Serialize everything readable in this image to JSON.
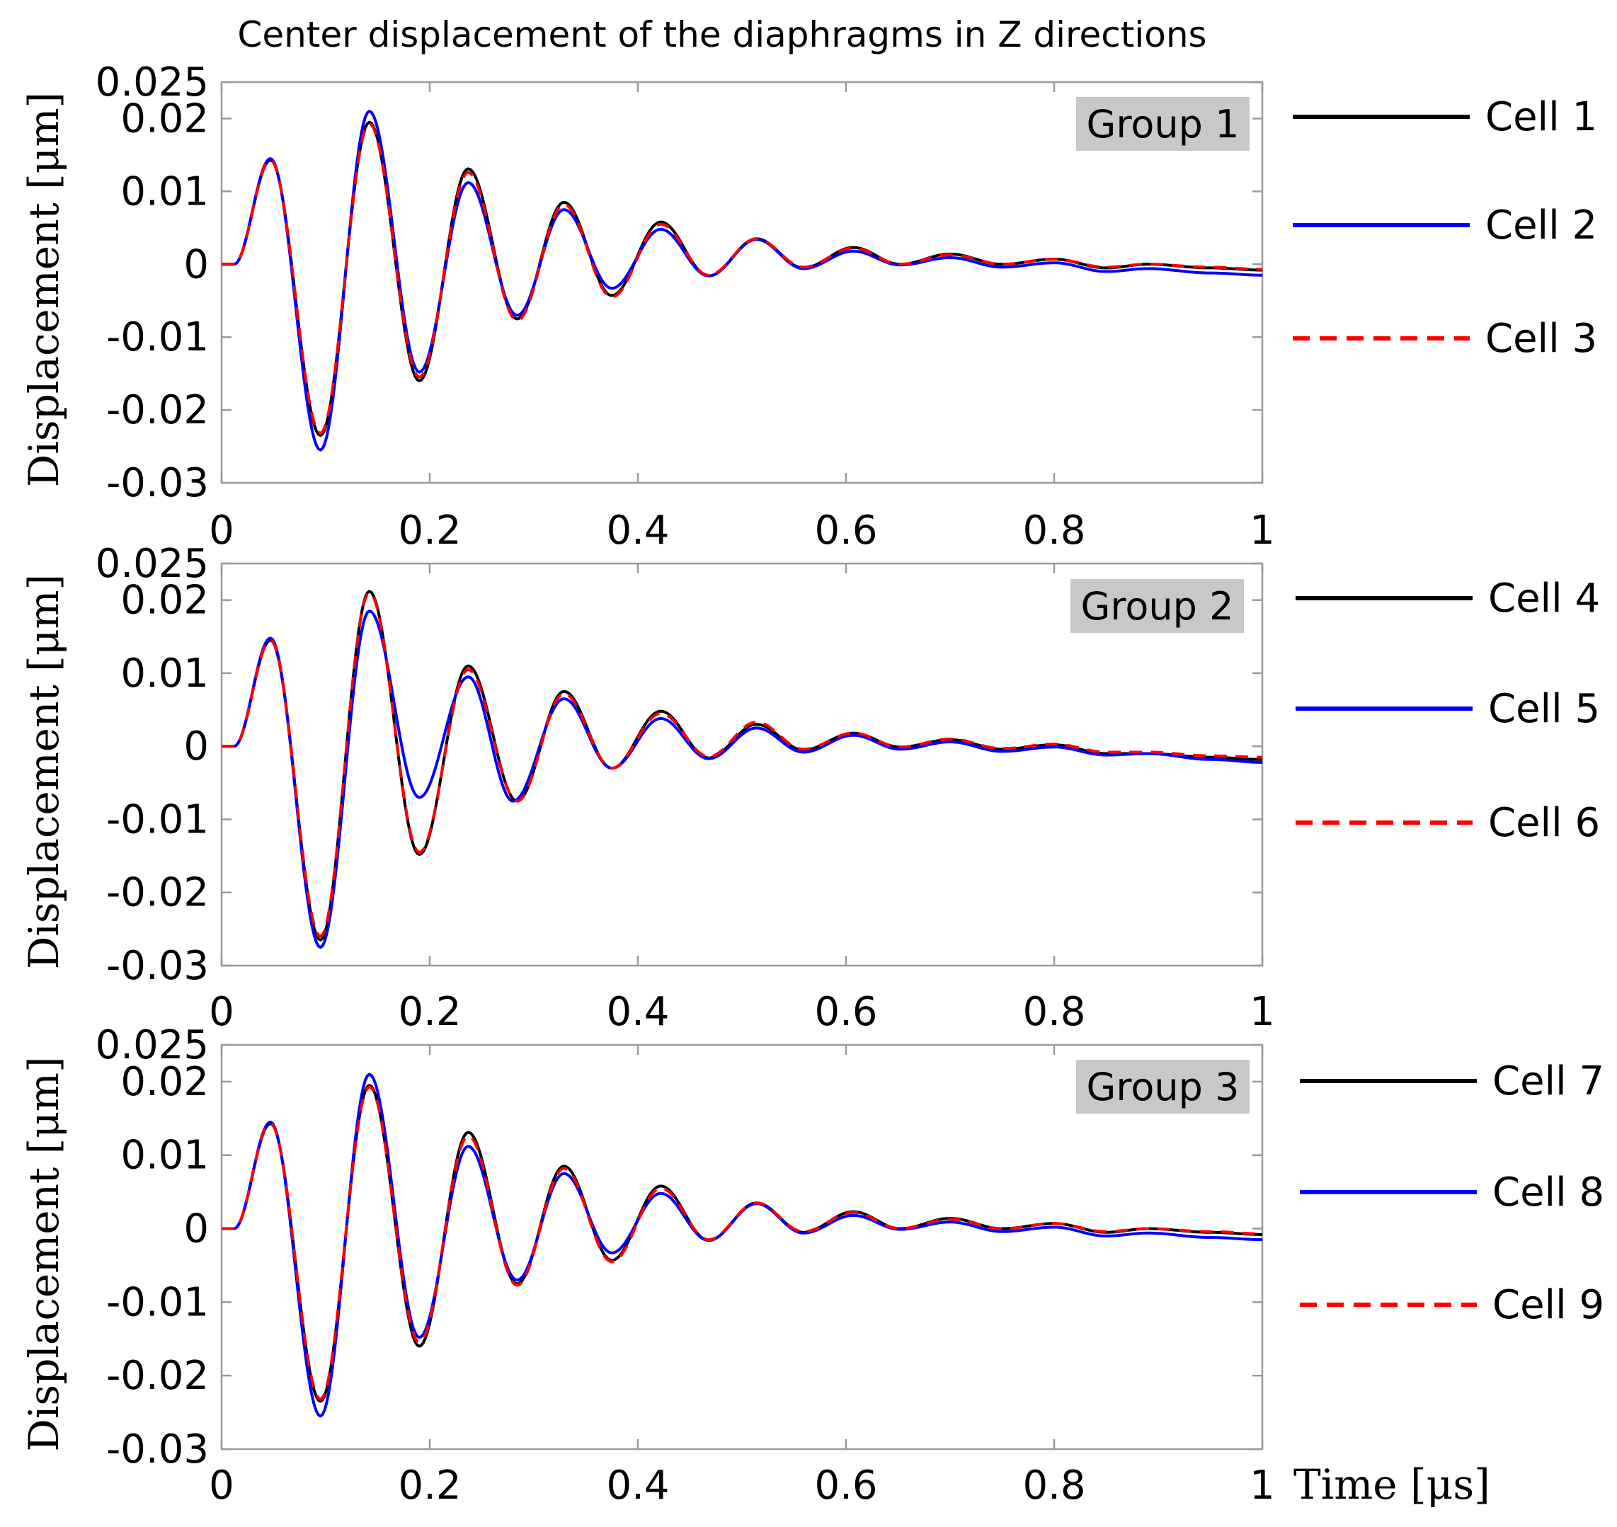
{
  "title": "Center displacement of the diaphragms in Z directions",
  "x_label": "Time [μs]",
  "colors": {
    "black": "#000000",
    "blue": "#0000ff",
    "red": "#ff0000",
    "group_box": "#c8c8c8",
    "axes": "#999999"
  },
  "chart_data": [
    {
      "type": "line",
      "group_label": "Group 1",
      "ylabel": "Displacement [μm]",
      "xlim": [
        0,
        1
      ],
      "ylim": [
        -0.03,
        0.025
      ],
      "x_ticks": [
        0,
        0.2,
        0.4,
        0.6,
        0.8,
        1
      ],
      "x_tick_labels": [
        "0",
        "0.2",
        "0.4",
        "0.6",
        "0.8",
        "1"
      ],
      "y_ticks": [
        0.025,
        0.02,
        0.01,
        0,
        -0.01,
        -0.02,
        -0.03
      ],
      "y_tick_labels": [
        "0.025",
        "0.02",
        "0.01",
        "0",
        "-0.01",
        "-0.02",
        "-0.03"
      ],
      "series": [
        {
          "name": "Cell 1",
          "color": "#000000",
          "dashed": false,
          "extrema": [
            [
              0,
              0
            ],
            [
              0.012,
              0
            ],
            [
              0.047,
              0.0143
            ],
            [
              0.095,
              -0.0235
            ],
            [
              0.142,
              0.0195
            ],
            [
              0.19,
              -0.016
            ],
            [
              0.237,
              0.0131
            ],
            [
              0.284,
              -0.0075
            ],
            [
              0.329,
              0.0085
            ],
            [
              0.375,
              -0.0043
            ],
            [
              0.422,
              0.0058
            ],
            [
              0.468,
              -0.0016
            ],
            [
              0.514,
              0.0035
            ],
            [
              0.559,
              -0.0005
            ],
            [
              0.607,
              0.0023
            ],
            [
              0.652,
              0
            ],
            [
              0.7,
              0.0014
            ],
            [
              0.75,
              0
            ],
            [
              0.8,
              0.0007
            ],
            [
              0.85,
              -0.0005
            ],
            [
              0.89,
              0
            ],
            [
              0.95,
              -0.0005
            ],
            [
              1,
              -0.0008
            ]
          ]
        },
        {
          "name": "Cell 2",
          "color": "#0000ff",
          "dashed": false,
          "extrema": [
            [
              0,
              0
            ],
            [
              0.012,
              0
            ],
            [
              0.047,
              0.0145
            ],
            [
              0.095,
              -0.0255
            ],
            [
              0.142,
              0.021
            ],
            [
              0.19,
              -0.0148
            ],
            [
              0.237,
              0.0112
            ],
            [
              0.284,
              -0.007
            ],
            [
              0.329,
              0.0075
            ],
            [
              0.375,
              -0.0033
            ],
            [
              0.422,
              0.0048
            ],
            [
              0.468,
              -0.0016
            ],
            [
              0.514,
              0.0034
            ],
            [
              0.559,
              -0.0006
            ],
            [
              0.607,
              0.0018
            ],
            [
              0.652,
              -0.0001
            ],
            [
              0.7,
              0.0009
            ],
            [
              0.75,
              -0.0004
            ],
            [
              0.8,
              0.0002
            ],
            [
              0.85,
              -0.001
            ],
            [
              0.89,
              -0.0006
            ],
            [
              0.95,
              -0.0012
            ],
            [
              1,
              -0.0015
            ]
          ]
        },
        {
          "name": "Cell 3",
          "color": "#ff0000",
          "dashed": true,
          "extrema": [
            [
              0,
              0
            ],
            [
              0.012,
              0
            ],
            [
              0.047,
              0.0143
            ],
            [
              0.095,
              -0.0232
            ],
            [
              0.142,
              0.0193
            ],
            [
              0.19,
              -0.0155
            ],
            [
              0.237,
              0.0126
            ],
            [
              0.284,
              -0.0077
            ],
            [
              0.329,
              0.0082
            ],
            [
              0.375,
              -0.0045
            ],
            [
              0.422,
              0.0055
            ],
            [
              0.468,
              -0.0015
            ],
            [
              0.514,
              0.0035
            ],
            [
              0.559,
              -0.0004
            ],
            [
              0.607,
              0.0022
            ],
            [
              0.652,
              0
            ],
            [
              0.7,
              0.0013
            ],
            [
              0.75,
              0
            ],
            [
              0.8,
              0.0007
            ],
            [
              0.85,
              -0.0004
            ],
            [
              0.89,
              0
            ],
            [
              0.95,
              -0.0004
            ],
            [
              1,
              -0.0007
            ]
          ]
        }
      ]
    },
    {
      "type": "line",
      "group_label": "Group 2",
      "ylabel": "Displacement [μm]",
      "xlim": [
        0,
        1
      ],
      "ylim": [
        -0.03,
        0.025
      ],
      "x_ticks": [
        0,
        0.2,
        0.4,
        0.6,
        0.8,
        1
      ],
      "x_tick_labels": [
        "0",
        "0.2",
        "0.4",
        "0.6",
        "0.8",
        "1"
      ],
      "y_ticks": [
        0.025,
        0.02,
        0.01,
        0,
        -0.01,
        -0.02,
        -0.03
      ],
      "y_tick_labels": [
        "0.025",
        "0.02",
        "0.01",
        "0",
        "-0.01",
        "-0.02",
        "-0.03"
      ],
      "series": [
        {
          "name": "Cell 4",
          "color": "#000000",
          "dashed": false,
          "extrema": [
            [
              0,
              0
            ],
            [
              0.012,
              0
            ],
            [
              0.047,
              0.0145
            ],
            [
              0.095,
              -0.0265
            ],
            [
              0.142,
              0.0212
            ],
            [
              0.19,
              -0.0148
            ],
            [
              0.237,
              0.011
            ],
            [
              0.284,
              -0.0075
            ],
            [
              0.329,
              0.0075
            ],
            [
              0.375,
              -0.003
            ],
            [
              0.422,
              0.0048
            ],
            [
              0.468,
              -0.0016
            ],
            [
              0.514,
              0.003
            ],
            [
              0.559,
              -0.0005
            ],
            [
              0.607,
              0.0018
            ],
            [
              0.652,
              -0.0001
            ],
            [
              0.7,
              0.0009
            ],
            [
              0.75,
              -0.0004
            ],
            [
              0.8,
              0.0002
            ],
            [
              0.85,
              -0.001
            ],
            [
              0.89,
              -0.001
            ],
            [
              0.95,
              -0.0015
            ],
            [
              1,
              -0.0018
            ]
          ]
        },
        {
          "name": "Cell 5",
          "color": "#0000ff",
          "dashed": false,
          "extrema": [
            [
              0,
              0
            ],
            [
              0.012,
              0
            ],
            [
              0.047,
              0.0148
            ],
            [
              0.095,
              -0.0275
            ],
            [
              0.142,
              0.0185
            ],
            [
              0.19,
              -0.007
            ],
            [
              0.237,
              0.0095
            ],
            [
              0.28,
              -0.0075
            ],
            [
              0.329,
              0.0065
            ],
            [
              0.375,
              -0.003
            ],
            [
              0.422,
              0.0038
            ],
            [
              0.468,
              -0.0017
            ],
            [
              0.514,
              0.0025
            ],
            [
              0.559,
              -0.0008
            ],
            [
              0.607,
              0.0015
            ],
            [
              0.652,
              -0.0004
            ],
            [
              0.7,
              0.0006
            ],
            [
              0.75,
              -0.0007
            ],
            [
              0.8,
              -0.0001
            ],
            [
              0.85,
              -0.0012
            ],
            [
              0.89,
              -0.001
            ],
            [
              0.95,
              -0.0018
            ],
            [
              1,
              -0.0022
            ]
          ]
        },
        {
          "name": "Cell 6",
          "color": "#ff0000",
          "dashed": true,
          "extrema": [
            [
              0,
              0
            ],
            [
              0.012,
              0
            ],
            [
              0.047,
              0.0145
            ],
            [
              0.095,
              -0.026
            ],
            [
              0.142,
              0.021
            ],
            [
              0.19,
              -0.0145
            ],
            [
              0.237,
              0.0105
            ],
            [
              0.284,
              -0.0075
            ],
            [
              0.329,
              0.0072
            ],
            [
              0.375,
              -0.003
            ],
            [
              0.422,
              0.0045
            ],
            [
              0.468,
              -0.0014
            ],
            [
              0.514,
              0.0033
            ],
            [
              0.559,
              -0.0004
            ],
            [
              0.607,
              0.0018
            ],
            [
              0.652,
              -0.0001
            ],
            [
              0.7,
              0.001
            ],
            [
              0.75,
              -0.0003
            ],
            [
              0.8,
              0.0003
            ],
            [
              0.85,
              -0.0008
            ],
            [
              0.89,
              -0.0008
            ],
            [
              0.95,
              -0.0013
            ],
            [
              1,
              -0.0015
            ]
          ]
        }
      ]
    },
    {
      "type": "line",
      "group_label": "Group 3",
      "ylabel": "Displacement [μm]",
      "xlim": [
        0,
        1
      ],
      "ylim": [
        -0.03,
        0.025
      ],
      "x_ticks": [
        0,
        0.2,
        0.4,
        0.6,
        0.8,
        1
      ],
      "x_tick_labels": [
        "0",
        "0.2",
        "0.4",
        "0.6",
        "0.8",
        "1"
      ],
      "y_ticks": [
        0.025,
        0.02,
        0.01,
        0,
        -0.01,
        -0.02,
        -0.03
      ],
      "y_tick_labels": [
        "0.025",
        "0.02",
        "0.01",
        "0",
        "-0.01",
        "-0.02",
        "-0.03"
      ],
      "series": [
        {
          "name": "Cell 7",
          "color": "#000000",
          "dashed": false,
          "extrema": [
            [
              0,
              0
            ],
            [
              0.012,
              0
            ],
            [
              0.047,
              0.0143
            ],
            [
              0.095,
              -0.0235
            ],
            [
              0.142,
              0.0195
            ],
            [
              0.19,
              -0.016
            ],
            [
              0.237,
              0.0131
            ],
            [
              0.284,
              -0.0075
            ],
            [
              0.329,
              0.0085
            ],
            [
              0.375,
              -0.0043
            ],
            [
              0.422,
              0.0058
            ],
            [
              0.468,
              -0.0016
            ],
            [
              0.514,
              0.0035
            ],
            [
              0.559,
              -0.0005
            ],
            [
              0.607,
              0.0023
            ],
            [
              0.652,
              0
            ],
            [
              0.7,
              0.0014
            ],
            [
              0.75,
              0
            ],
            [
              0.8,
              0.0007
            ],
            [
              0.85,
              -0.0005
            ],
            [
              0.89,
              0
            ],
            [
              0.95,
              -0.0005
            ],
            [
              1,
              -0.0008
            ]
          ]
        },
        {
          "name": "Cell 8",
          "color": "#0000ff",
          "dashed": false,
          "extrema": [
            [
              0,
              0
            ],
            [
              0.012,
              0
            ],
            [
              0.047,
              0.0145
            ],
            [
              0.095,
              -0.0255
            ],
            [
              0.142,
              0.021
            ],
            [
              0.19,
              -0.0148
            ],
            [
              0.237,
              0.0112
            ],
            [
              0.284,
              -0.007
            ],
            [
              0.329,
              0.0075
            ],
            [
              0.375,
              -0.0033
            ],
            [
              0.422,
              0.0048
            ],
            [
              0.468,
              -0.0016
            ],
            [
              0.514,
              0.0034
            ],
            [
              0.559,
              -0.0006
            ],
            [
              0.607,
              0.0018
            ],
            [
              0.652,
              -0.0001
            ],
            [
              0.7,
              0.0009
            ],
            [
              0.75,
              -0.0004
            ],
            [
              0.8,
              0.0002
            ],
            [
              0.85,
              -0.001
            ],
            [
              0.89,
              -0.0006
            ],
            [
              0.95,
              -0.0012
            ],
            [
              1,
              -0.0015
            ]
          ]
        },
        {
          "name": "Cell 9",
          "color": "#ff0000",
          "dashed": true,
          "extrema": [
            [
              0,
              0
            ],
            [
              0.012,
              0
            ],
            [
              0.047,
              0.0143
            ],
            [
              0.095,
              -0.0232
            ],
            [
              0.142,
              0.0193
            ],
            [
              0.19,
              -0.0155
            ],
            [
              0.237,
              0.0126
            ],
            [
              0.284,
              -0.0077
            ],
            [
              0.329,
              0.0082
            ],
            [
              0.375,
              -0.0045
            ],
            [
              0.422,
              0.0055
            ],
            [
              0.468,
              -0.0015
            ],
            [
              0.514,
              0.0035
            ],
            [
              0.559,
              -0.0004
            ],
            [
              0.607,
              0.0022
            ],
            [
              0.652,
              0
            ],
            [
              0.7,
              0.0013
            ],
            [
              0.75,
              0
            ],
            [
              0.8,
              0.0007
            ],
            [
              0.85,
              -0.0004
            ],
            [
              0.89,
              0
            ],
            [
              0.95,
              -0.0004
            ],
            [
              1,
              -0.0007
            ]
          ]
        }
      ]
    }
  ]
}
